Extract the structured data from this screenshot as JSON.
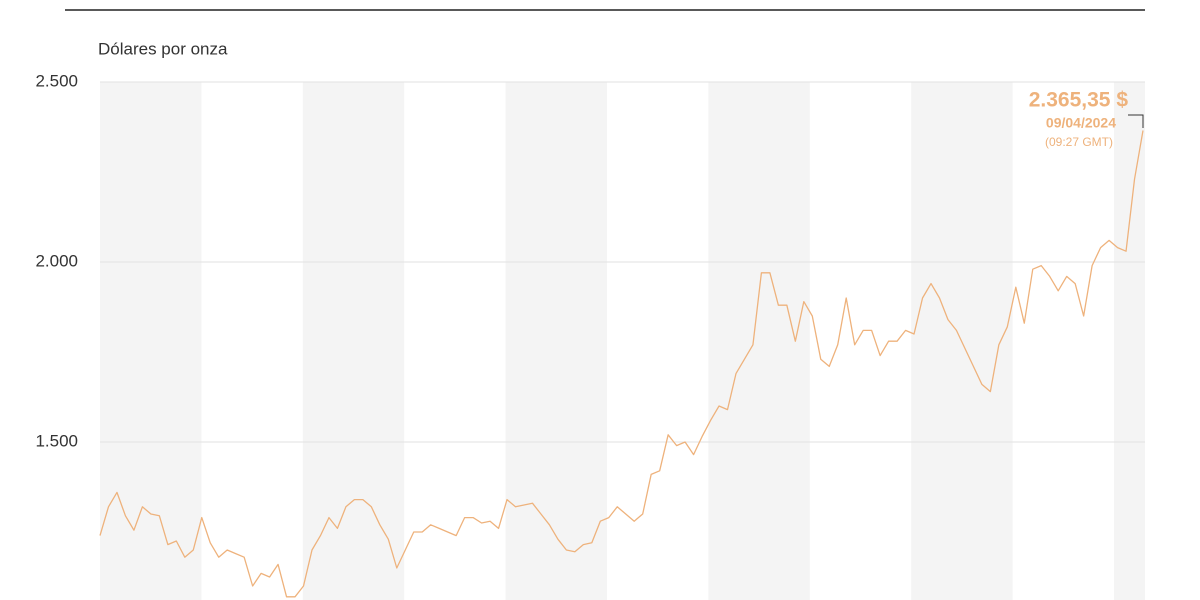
{
  "chart_data": {
    "type": "line",
    "y_label": "Dólares por onza",
    "color": "#eeb27c",
    "values": [
      1240,
      1320,
      1360,
      1295,
      1255,
      1320,
      1300,
      1295,
      1215,
      1225,
      1180,
      1200,
      1290,
      1220,
      1180,
      1200,
      1190,
      1180,
      1100,
      1135,
      1125,
      1160,
      1070,
      1070,
      1100,
      1200,
      1240,
      1290,
      1260,
      1320,
      1340,
      1340,
      1320,
      1270,
      1230,
      1150,
      1200,
      1250,
      1250,
      1270,
      1260,
      1250,
      1240,
      1290,
      1290,
      1275,
      1280,
      1260,
      1340,
      1320,
      1325,
      1330,
      1300,
      1270,
      1230,
      1200,
      1195,
      1215,
      1220,
      1280,
      1290,
      1320,
      1300,
      1280,
      1300,
      1410,
      1420,
      1520,
      1490,
      1500,
      1465,
      1515,
      1560,
      1600,
      1590,
      1690,
      1730,
      1770,
      1970,
      1970,
      1880,
      1880,
      1780,
      1890,
      1850,
      1730,
      1710,
      1770,
      1900,
      1770,
      1810,
      1810,
      1740,
      1780,
      1780,
      1810,
      1800,
      1900,
      1940,
      1900,
      1840,
      1810,
      1760,
      1710,
      1660,
      1640,
      1770,
      1820,
      1930,
      1830,
      1980,
      1990,
      1960,
      1920,
      1960,
      1940,
      1850,
      1990,
      2040,
      2060,
      2040,
      2030,
      2230,
      2365.35
    ],
    "ylim": [
      1060,
      2500
    ],
    "yticks": [
      {
        "value": 1500,
        "label": "1.500"
      },
      {
        "value": 2000,
        "label": "2.000"
      },
      {
        "value": 2500,
        "label": "2.500"
      }
    ],
    "grid": true,
    "annotation": {
      "value_label": "2.365,35 $",
      "date": "09/04/2024",
      "time": "(09:27 GMT)"
    }
  }
}
